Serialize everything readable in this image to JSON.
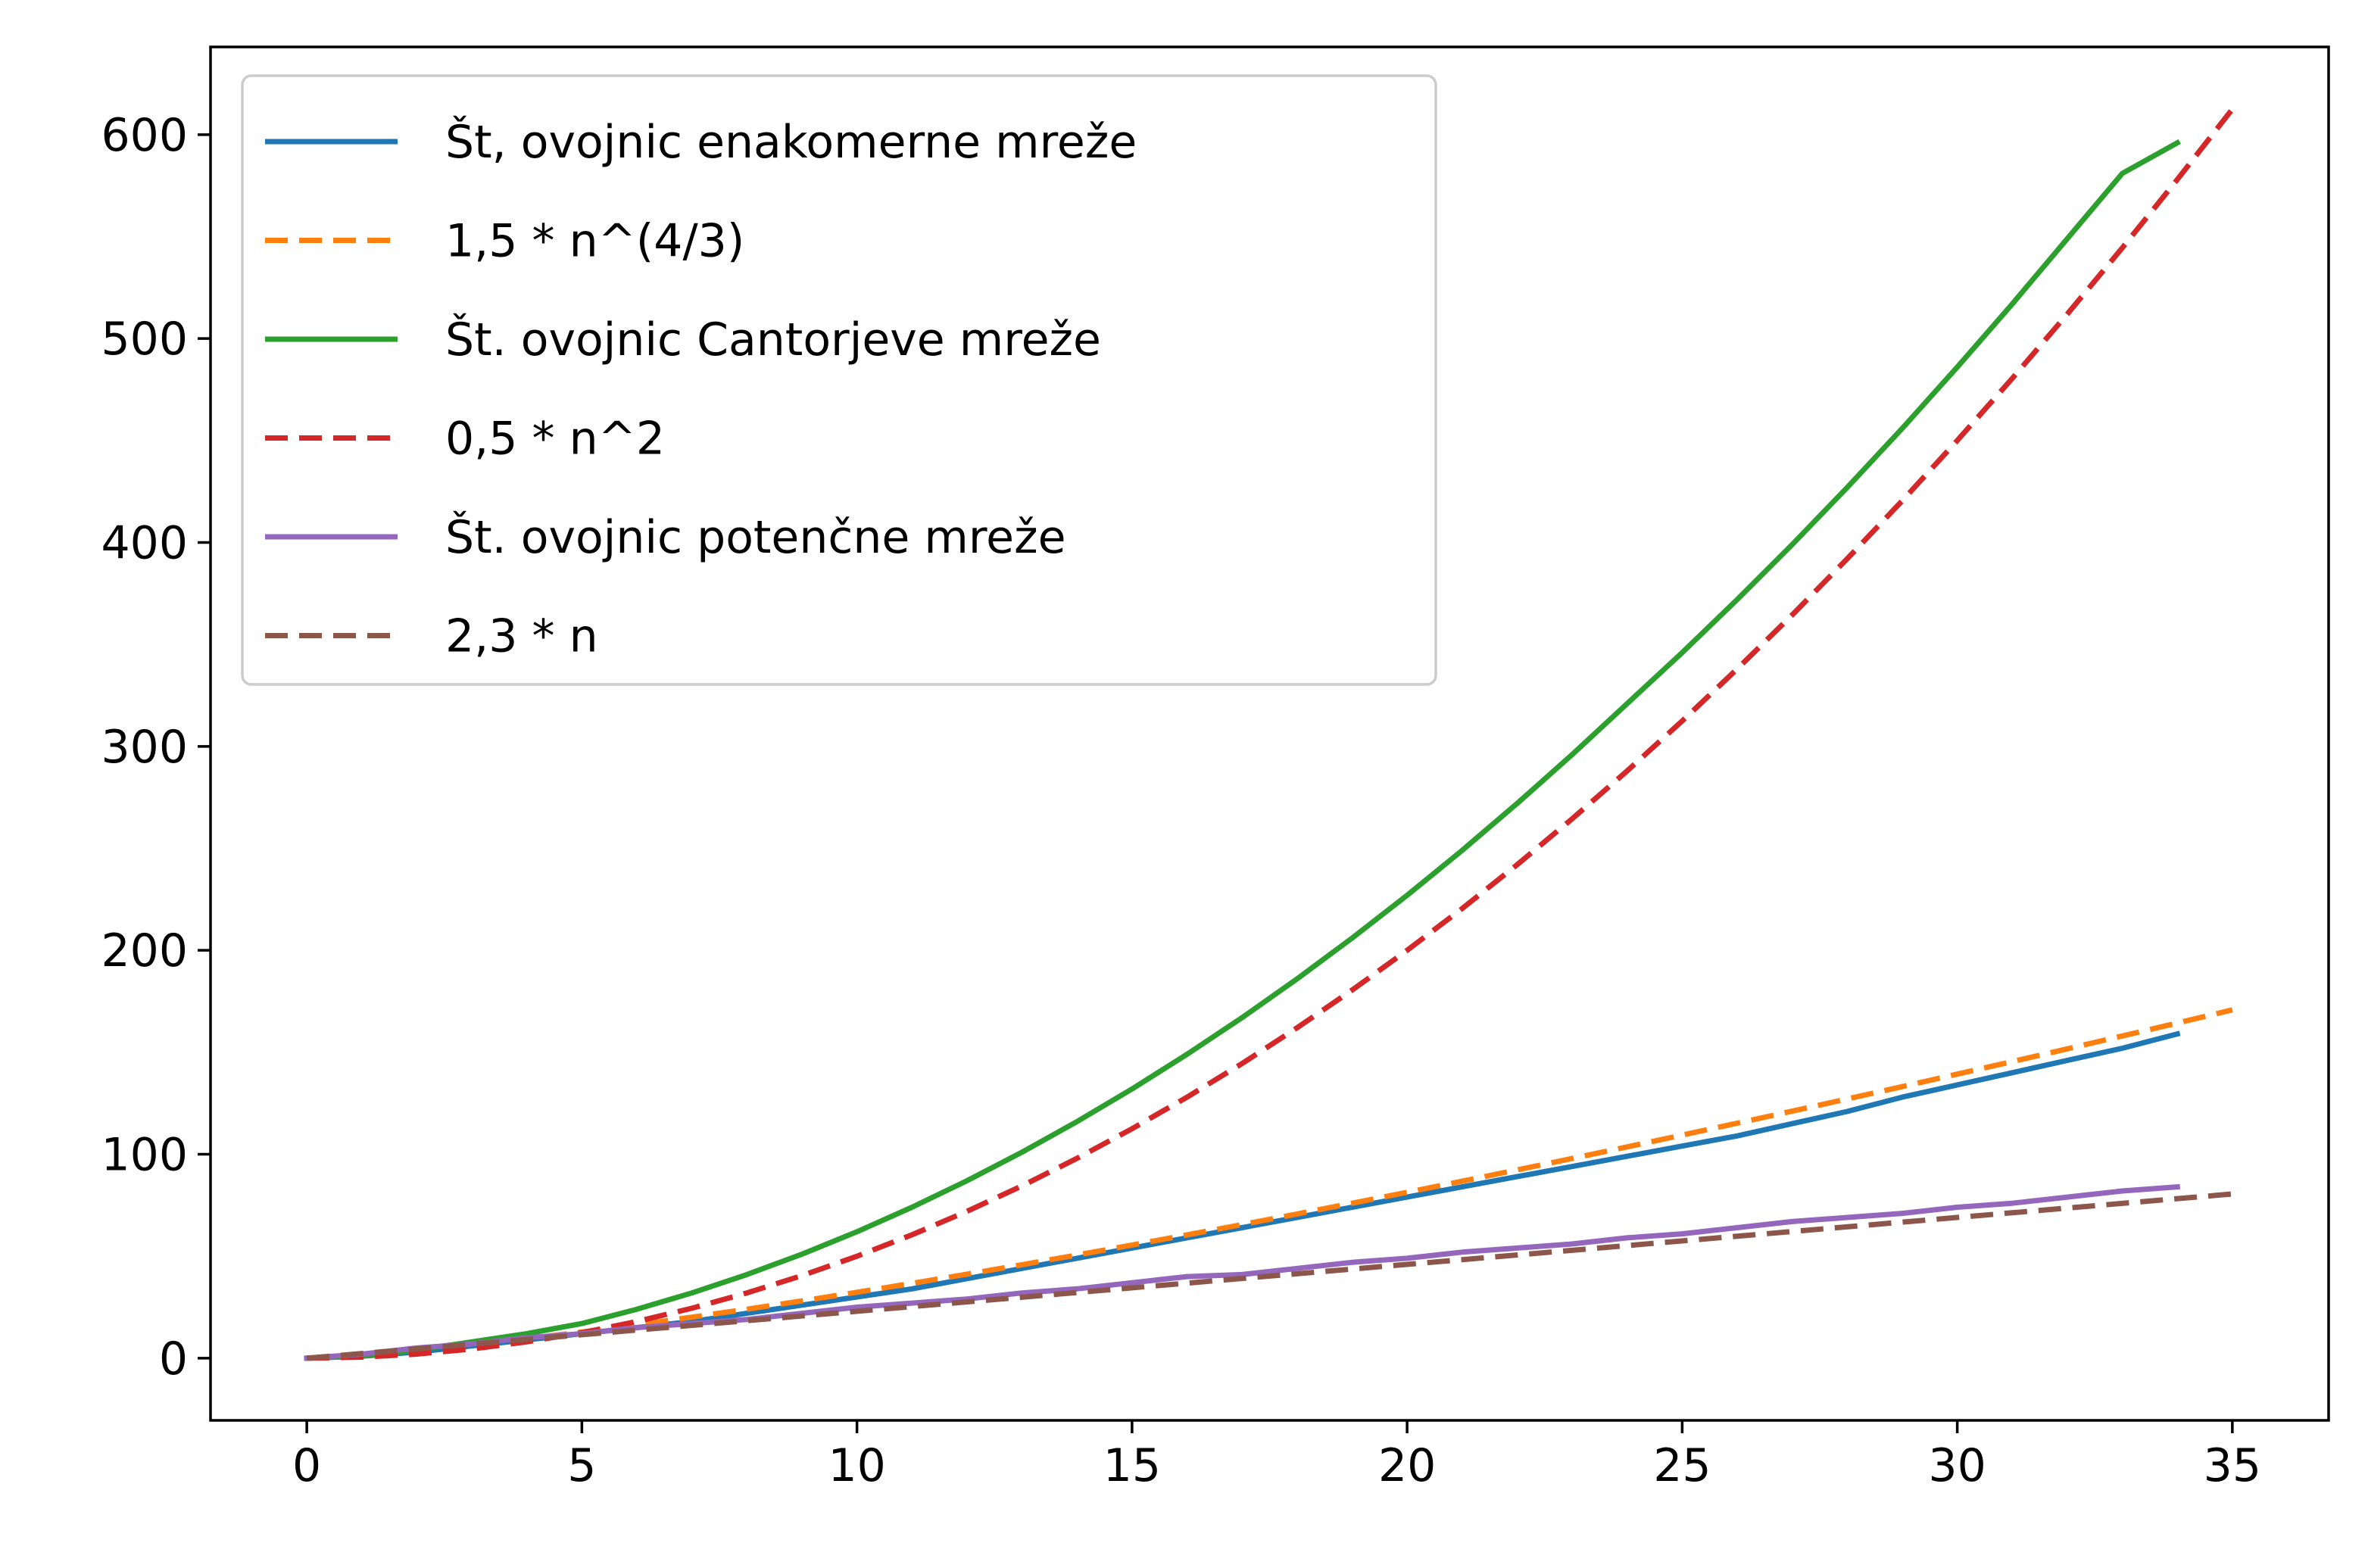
{
  "chart_data": {
    "type": "line",
    "title": "",
    "xlabel": "",
    "ylabel": "",
    "xlim": [
      -1.75,
      36.75
    ],
    "ylim": [
      -30.5,
      643
    ],
    "xticks": [
      0,
      5,
      10,
      15,
      20,
      25,
      30,
      35
    ],
    "yticks": [
      0,
      100,
      200,
      300,
      400,
      500,
      600
    ],
    "grid": false,
    "legend_position": "top-left",
    "series": [
      {
        "name": "Št, ovojnic enakomerne mreže",
        "color": "#1f77b4",
        "style": "solid",
        "x": [
          0,
          1,
          2,
          3,
          4,
          5,
          6,
          7,
          8,
          9,
          10,
          11,
          12,
          13,
          14,
          15,
          16,
          17,
          18,
          19,
          20,
          21,
          22,
          23,
          24,
          25,
          26,
          27,
          28,
          29,
          30,
          31,
          32,
          33,
          34
        ],
        "y": [
          0,
          1,
          3,
          6,
          9,
          12,
          15,
          18,
          22,
          26,
          30,
          34,
          39,
          44,
          49,
          54,
          59,
          64,
          69,
          74,
          79,
          84,
          89,
          94,
          99,
          104,
          109,
          115,
          121,
          128,
          134,
          140,
          146,
          152,
          159
        ]
      },
      {
        "name": "1,5 * n^(4/3)",
        "color": "#ff7f0e",
        "style": "dashed",
        "x": [
          0,
          1,
          2,
          3,
          4,
          5,
          6,
          7,
          8,
          9,
          10,
          11,
          12,
          13,
          14,
          15,
          16,
          17,
          18,
          19,
          20,
          21,
          22,
          23,
          24,
          25,
          26,
          27,
          28,
          29,
          30,
          31,
          32,
          33,
          34,
          35
        ],
        "y": [
          0,
          1.5,
          3.78,
          6.49,
          9.52,
          12.82,
          16.35,
          20.09,
          24.0,
          28.08,
          32.32,
          36.7,
          41.21,
          45.85,
          50.6,
          55.47,
          60.45,
          65.52,
          70.7,
          75.97,
          81.33,
          86.78,
          92.31,
          97.92,
          103.61,
          109.38,
          115.22,
          121.13,
          127.11,
          133.16,
          139.27,
          145.45,
          151.7,
          158.0,
          164.36,
          170.79
        ]
      },
      {
        "name": "Št. ovojnic Cantorjeve mreže",
        "color": "#2ca02c",
        "style": "solid",
        "x": [
          0,
          1,
          2,
          3,
          4,
          5,
          6,
          7,
          8,
          9,
          10,
          11,
          12,
          13,
          14,
          15,
          16,
          17,
          18,
          19,
          20,
          21,
          22,
          23,
          24,
          25,
          26,
          27,
          28,
          29,
          30,
          31,
          32,
          33,
          34
        ],
        "y": [
          0,
          1,
          4,
          8,
          12,
          17,
          24,
          32,
          41,
          51,
          62,
          74,
          87,
          101,
          116,
          132,
          149,
          167,
          186,
          206,
          227,
          249,
          272,
          296,
          321,
          346,
          372,
          399,
          427,
          456,
          486,
          517,
          549,
          581,
          596
        ]
      },
      {
        "name": "0,5 * n^2",
        "color": "#d62728",
        "style": "dashed",
        "x": [
          0,
          1,
          2,
          3,
          4,
          5,
          6,
          7,
          8,
          9,
          10,
          11,
          12,
          13,
          14,
          15,
          16,
          17,
          18,
          19,
          20,
          21,
          22,
          23,
          24,
          25,
          26,
          27,
          28,
          29,
          30,
          31,
          32,
          33,
          34,
          35
        ],
        "y": [
          0,
          0.5,
          2,
          4.5,
          8,
          12.5,
          18,
          24.5,
          32,
          40.5,
          50,
          60.5,
          72,
          84.5,
          98,
          112.5,
          128,
          144.5,
          162,
          180.5,
          200,
          220.5,
          242,
          264.5,
          288,
          312.5,
          338,
          364.5,
          392,
          420.5,
          450,
          480.5,
          512,
          544.5,
          578,
          612.5
        ]
      },
      {
        "name": "Št. ovojnic potenčne mreže",
        "color": "#9467bd",
        "style": "solid",
        "x": [
          0,
          1,
          2,
          3,
          4,
          5,
          6,
          7,
          8,
          9,
          10,
          11,
          12,
          13,
          14,
          15,
          16,
          17,
          18,
          19,
          20,
          21,
          22,
          23,
          24,
          25,
          26,
          27,
          28,
          29,
          30,
          31,
          32,
          33,
          34
        ],
        "y": [
          0,
          2,
          5,
          7,
          10,
          12,
          15,
          17,
          19,
          22,
          25,
          27,
          29,
          32,
          34,
          37,
          40,
          41,
          44,
          47,
          49,
          52,
          54,
          56,
          59,
          61,
          64,
          67,
          69,
          71,
          74,
          76,
          79,
          82,
          84
        ]
      },
      {
        "name": "2,3 * n",
        "color": "#8c564b",
        "style": "dashed",
        "x": [
          0,
          35
        ],
        "y": [
          0,
          80.5
        ]
      }
    ]
  }
}
